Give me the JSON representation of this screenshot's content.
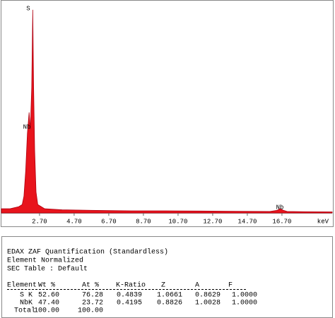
{
  "chart_data": {
    "type": "area",
    "x": [
      0.5,
      1.0,
      1.5,
      1.7,
      1.8,
      1.9,
      2.0,
      2.1,
      2.17,
      2.25,
      2.31,
      2.36,
      2.42,
      2.5,
      2.6,
      3.0,
      4,
      6,
      8,
      10,
      12,
      14,
      16,
      16.4,
      16.6,
      16.8,
      17,
      18,
      19.6
    ],
    "values": [
      2,
      2,
      3,
      4,
      8,
      20,
      38,
      48,
      40,
      60,
      97,
      60,
      30,
      10,
      4,
      2,
      1.5,
      1.2,
      1.0,
      1.0,
      0.9,
      0.8,
      0.7,
      1.2,
      2.0,
      1.2,
      0.7,
      0.6,
      0.5
    ],
    "color": "#e8141c",
    "xlim": [
      0.5,
      19.6
    ],
    "ylim": [
      0,
      100
    ],
    "xticks": [
      {
        "value": 2.7,
        "label": "2.70"
      },
      {
        "value": 4.7,
        "label": "4.70"
      },
      {
        "value": 6.7,
        "label": "6.70"
      },
      {
        "value": 8.7,
        "label": "8.70"
      },
      {
        "value": 10.7,
        "label": "10.70"
      },
      {
        "value": 12.7,
        "label": "12.70"
      },
      {
        "value": 14.7,
        "label": "14.70"
      },
      {
        "value": 16.7,
        "label": "16.70"
      }
    ],
    "x_label": "keV",
    "annotations": [
      "S",
      "Nb",
      "Nb"
    ]
  },
  "report": {
    "lines": [
      "EDAX ZAF Quantification (Standardless)",
      "Element Normalized",
      "SEC Table : Default"
    ],
    "table": {
      "header": [
        "Element",
        "Wt %",
        "At %",
        "K-Ratio",
        "Z",
        "A",
        "F"
      ],
      "rows": [
        [
          "S K",
          "52.60",
          "76.28",
          "0.4839",
          "1.0661",
          "0.8629",
          "1.0000"
        ],
        [
          "NbK",
          "47.40",
          "23.72",
          "0.4195",
          "0.8826",
          "1.0028",
          "1.0000"
        ],
        [
          "Total",
          "100.00",
          "100.00",
          null,
          null,
          null,
          null
        ]
      ]
    }
  }
}
